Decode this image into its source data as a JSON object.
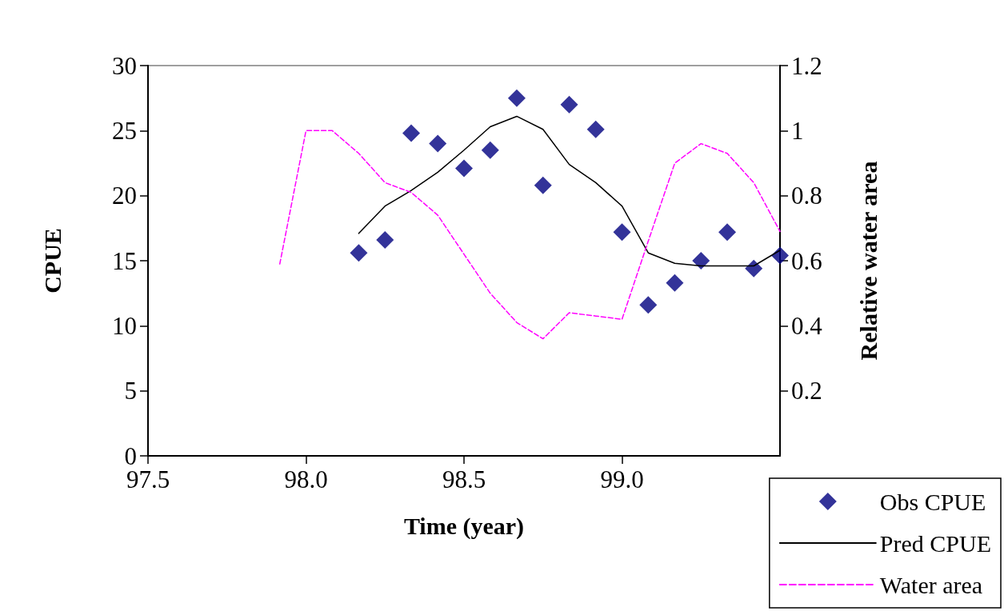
{
  "chart_data": {
    "type": "line",
    "xlabel": "Time (year)",
    "ylabel": "CPUE",
    "y2label": "Relative water area",
    "xlim": [
      97.5,
      99.5
    ],
    "xticks": [
      97.5,
      {
        "value": 98,
        "label": "98.0"
      },
      98.5,
      {
        "value": 99,
        "label": "99.0"
      }
    ],
    "ylim": [
      0,
      30
    ],
    "yticks": [
      0,
      5,
      10,
      15,
      20,
      25,
      30
    ],
    "y2lim": [
      0,
      1.2
    ],
    "y2ticks": [
      0.2,
      0.4,
      0.6,
      0.8,
      1,
      1.2
    ],
    "grid": false,
    "legend": "bottom right",
    "series": [
      {
        "name": "Obs CPUE",
        "type": "scatter",
        "marker": "diamond",
        "color": "#000080",
        "x": [
          98.167,
          98.25,
          98.333,
          98.417,
          98.5,
          98.583,
          98.667,
          98.75,
          98.833,
          98.917,
          99.0,
          99.083,
          99.167,
          99.25,
          99.333,
          99.417,
          99.5
        ],
        "values": [
          15.6,
          16.6,
          24.8,
          24.0,
          22.1,
          23.5,
          27.5,
          20.8,
          27.0,
          25.1,
          17.2,
          11.6,
          13.3,
          15.0,
          17.2,
          14.4,
          15.4
        ]
      },
      {
        "name": "Pred CPUE",
        "type": "line",
        "marker": "none",
        "line_style": "solid",
        "color": "#000000",
        "x": [
          98.167,
          98.25,
          98.333,
          98.417,
          98.5,
          98.583,
          98.667,
          98.75,
          98.833,
          98.917,
          99.0,
          99.083,
          99.167,
          99.25,
          99.333,
          99.417,
          99.5
        ],
        "values": [
          17.1,
          19.2,
          20.4,
          21.8,
          23.5,
          25.3,
          26.1,
          25.1,
          22.4,
          21.0,
          19.2,
          15.6,
          14.8,
          14.6,
          14.6,
          14.6,
          15.8
        ]
      },
      {
        "name": "Water area",
        "type": "line",
        "axis": "y2",
        "marker": "none",
        "line_style": "dashed",
        "color": "#ff00ff",
        "x": [
          97.917,
          98.0,
          98.083,
          98.167,
          98.25,
          98.333,
          98.417,
          98.5,
          98.583,
          98.667,
          98.75,
          98.833,
          98.917,
          99.0,
          99.083,
          99.167,
          99.25,
          99.333,
          99.417,
          99.5
        ],
        "values": [
          0.59,
          1.0,
          1.0,
          0.93,
          0.84,
          0.81,
          0.74,
          0.62,
          0.5,
          0.41,
          0.36,
          0.44,
          0.43,
          0.42,
          0.66,
          0.9,
          0.96,
          0.93,
          0.84,
          0.69
        ]
      }
    ]
  }
}
